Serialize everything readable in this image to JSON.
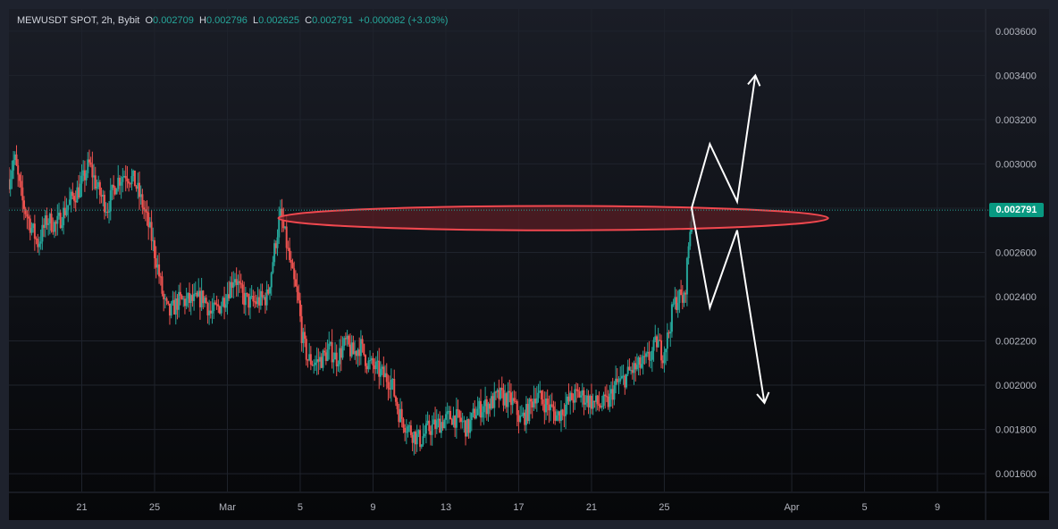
{
  "header": {
    "symbol": "MEWUSDT SPOT, 2h, Bybit",
    "open_label": "O",
    "open": "0.002709",
    "high_label": "H",
    "high": "0.002796",
    "low_label": "L",
    "low": "0.002625",
    "close_label": "C",
    "close": "0.002791",
    "change": "+0.000082 (+3.03%)"
  },
  "colors": {
    "up": "#26a69a",
    "down": "#ef5350",
    "zone_fill": "#5a1e24",
    "zone_stroke": "#f2484f",
    "projection": "#ffffff",
    "badge": "#089981"
  },
  "price_axis": [
    "0.003600",
    "0.003400",
    "0.003200",
    "0.003000",
    "0.002600",
    "0.002400",
    "0.002200",
    "0.002000",
    "0.001800",
    "0.001600"
  ],
  "last_price": "0.002791",
  "time_axis": [
    "21",
    "25",
    "Mar",
    "5",
    "9",
    "13",
    "17",
    "21",
    "25",
    "Apr",
    "5",
    "9"
  ],
  "chart_data": {
    "type": "candlestick",
    "title": "MEWUSDT SPOT, 2h, Bybit",
    "ylim": [
      0.00156,
      0.00366
    ],
    "y_ticks": [
      0.0016,
      0.0018,
      0.002,
      0.0022,
      0.0024,
      0.0026,
      0.0028,
      0.003,
      0.0032,
      0.0034,
      0.0036
    ],
    "x_ticks": [
      {
        "label": "21",
        "day": 21
      },
      {
        "label": "25",
        "day": 25
      },
      {
        "label": "Mar",
        "day": 29
      },
      {
        "label": "5",
        "day": 33
      },
      {
        "label": "9",
        "day": 37
      },
      {
        "label": "13",
        "day": 41
      },
      {
        "label": "17",
        "day": 45
      },
      {
        "label": "21",
        "day": 49
      },
      {
        "label": "25",
        "day": 53
      },
      {
        "label": "Apr",
        "day": 60
      },
      {
        "label": "5",
        "day": 64
      },
      {
        "label": "9",
        "day": 68
      }
    ],
    "x_start_day": 17,
    "x_end_day": 70.6,
    "price_path": [
      [
        17.0,
        0.00293
      ],
      [
        17.3,
        0.00303
      ],
      [
        17.7,
        0.00284
      ],
      [
        18.2,
        0.00272
      ],
      [
        18.6,
        0.00264
      ],
      [
        19.1,
        0.00275
      ],
      [
        19.6,
        0.00272
      ],
      [
        20.0,
        0.00278
      ],
      [
        20.5,
        0.00285
      ],
      [
        20.9,
        0.00289
      ],
      [
        21.4,
        0.003
      ],
      [
        21.9,
        0.00288
      ],
      [
        22.4,
        0.0028
      ],
      [
        22.9,
        0.00292
      ],
      [
        23.4,
        0.00296
      ],
      [
        23.9,
        0.00292
      ],
      [
        24.4,
        0.0028
      ],
      [
        24.8,
        0.00268
      ],
      [
        25.2,
        0.00252
      ],
      [
        25.5,
        0.00238
      ],
      [
        25.8,
        0.00232
      ],
      [
        26.3,
        0.00238
      ],
      [
        26.8,
        0.00238
      ],
      [
        27.3,
        0.00238
      ],
      [
        27.7,
        0.0024
      ],
      [
        28.1,
        0.00232
      ],
      [
        28.6,
        0.00236
      ],
      [
        29.0,
        0.00242
      ],
      [
        29.4,
        0.0025
      ],
      [
        29.8,
        0.0024
      ],
      [
        30.3,
        0.00237
      ],
      [
        30.7,
        0.00238
      ],
      [
        31.2,
        0.0024
      ],
      [
        31.6,
        0.00262
      ],
      [
        31.9,
        0.00277
      ],
      [
        32.2,
        0.00266
      ],
      [
        32.6,
        0.00248
      ],
      [
        32.9,
        0.00238
      ],
      [
        33.1,
        0.00222
      ],
      [
        33.4,
        0.00212
      ],
      [
        33.8,
        0.0021
      ],
      [
        34.2,
        0.00212
      ],
      [
        34.6,
        0.00216
      ],
      [
        35.0,
        0.00212
      ],
      [
        35.5,
        0.00219
      ],
      [
        35.9,
        0.00214
      ],
      [
        36.3,
        0.00218
      ],
      [
        36.7,
        0.0021
      ],
      [
        37.1,
        0.00208
      ],
      [
        37.6,
        0.00204
      ],
      [
        38.0,
        0.00202
      ],
      [
        38.4,
        0.00188
      ],
      [
        38.8,
        0.00182
      ],
      [
        39.2,
        0.00178
      ],
      [
        39.6,
        0.00175
      ],
      [
        40.0,
        0.0018
      ],
      [
        40.5,
        0.00182
      ],
      [
        40.9,
        0.00184
      ],
      [
        41.3,
        0.00186
      ],
      [
        41.8,
        0.00184
      ],
      [
        42.2,
        0.0018
      ],
      [
        42.6,
        0.00188
      ],
      [
        43.0,
        0.0019
      ],
      [
        43.5,
        0.00192
      ],
      [
        43.9,
        0.00195
      ],
      [
        44.3,
        0.00194
      ],
      [
        44.7,
        0.00192
      ],
      [
        45.1,
        0.00184
      ],
      [
        45.5,
        0.00188
      ],
      [
        45.9,
        0.00196
      ],
      [
        46.3,
        0.00193
      ],
      [
        46.7,
        0.0019
      ],
      [
        47.1,
        0.00186
      ],
      [
        47.5,
        0.0019
      ],
      [
        47.9,
        0.00194
      ],
      [
        48.3,
        0.00196
      ],
      [
        48.7,
        0.00194
      ],
      [
        49.1,
        0.00192
      ],
      [
        49.5,
        0.00191
      ],
      [
        49.9,
        0.00192
      ],
      [
        50.3,
        0.002
      ],
      [
        50.7,
        0.00202
      ],
      [
        51.1,
        0.00206
      ],
      [
        51.5,
        0.00208
      ],
      [
        51.9,
        0.0021
      ],
      [
        52.3,
        0.00214
      ],
      [
        52.6,
        0.0022
      ],
      [
        52.9,
        0.00214
      ],
      [
        53.2,
        0.00222
      ],
      [
        53.5,
        0.00236
      ],
      [
        53.8,
        0.0024
      ],
      [
        54.1,
        0.00238
      ],
      [
        54.3,
        0.0026
      ],
      [
        54.5,
        0.00279
      ]
    ],
    "resistance_zone": {
      "low": 0.0027,
      "high": 0.00281,
      "from_day": 31.8,
      "to_day": 62.0
    },
    "projection_paths": [
      [
        [
          54.5,
          0.0028
        ],
        [
          55.5,
          0.00309
        ],
        [
          57.0,
          0.00283
        ],
        [
          58.0,
          0.0034
        ]
      ],
      [
        [
          54.5,
          0.0028
        ],
        [
          55.5,
          0.00235
        ],
        [
          57.0,
          0.0027
        ],
        [
          58.5,
          0.00192
        ]
      ]
    ]
  }
}
